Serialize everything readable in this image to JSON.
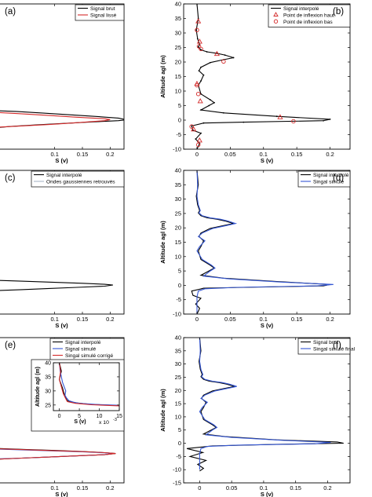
{
  "figure": {
    "background": "#ffffff"
  },
  "chart_data": [
    {
      "panel": "a",
      "panel_label": "(a)",
      "type": "line",
      "xlabel": "S (v)",
      "ylabel": "",
      "xlim": [
        0.0,
        0.225
      ],
      "ylim": [
        -10,
        40
      ],
      "xticks": [
        "0.1",
        "0.15",
        "0.2"
      ],
      "yticks": [],
      "legend": "top-right",
      "series": [
        {
          "name": "Signal brut",
          "color": "#000000",
          "x": [
            0.0,
            0.03,
            0.08,
            0.13,
            0.18,
            0.215,
            0.225,
            0.225,
            0.215,
            0.17,
            0.12,
            0.07,
            0.02,
            0.0
          ],
          "y": [
            3.2,
            3.0,
            2.4,
            1.8,
            1.2,
            0.7,
            0.3,
            0.0,
            -0.2,
            -0.6,
            -1.1,
            -1.6,
            -2.2,
            -2.5
          ]
        },
        {
          "name": "Signal lissé",
          "color": "#d42a2a",
          "x": [
            0.0,
            0.04,
            0.09,
            0.14,
            0.19,
            0.2,
            0.19,
            0.14,
            0.09,
            0.04,
            0.0
          ],
          "y": [
            2.6,
            2.2,
            1.6,
            1.0,
            0.5,
            0.2,
            -0.2,
            -0.9,
            -1.5,
            -2.0,
            -2.4
          ]
        }
      ]
    },
    {
      "panel": "b",
      "panel_label": "(b)",
      "type": "line",
      "xlabel": "S (v)",
      "ylabel": "Altitude agl (m)",
      "xlim": [
        -0.02,
        0.23
      ],
      "ylim": [
        -10,
        40
      ],
      "xticks": [
        "0",
        "0.05",
        "0.1",
        "0.15",
        "0.2"
      ],
      "yticks": [
        "-10",
        "-5",
        "0",
        "5",
        "10",
        "15",
        "20",
        "25",
        "30",
        "35",
        "40"
      ],
      "legend": "top-right",
      "series": [
        {
          "name": "Signal interpolé",
          "color": "#000000",
          "x": [
            0.0,
            0.002,
            -0.001,
            0.001,
            0.004,
            0.002,
            0.006,
            0.015,
            0.03,
            0.042,
            0.055,
            0.04,
            0.02,
            0.006,
            0.003,
            0.01,
            0.006,
            0.002,
            0.006,
            0.02,
            0.026,
            0.018,
            0.006,
            0.04,
            0.12,
            0.2,
            0.19,
            0.07,
            0.01,
            -0.008,
            -0.006,
            0.006,
            -0.002,
            0.004,
            0.0
          ],
          "y": [
            40,
            35,
            31,
            28,
            26,
            25.2,
            24.2,
            23.5,
            23,
            22.4,
            21.5,
            20.8,
            19.8,
            18.2,
            17,
            15.5,
            13.5,
            12,
            9,
            7,
            6,
            5,
            3.5,
            2.5,
            1.3,
            0.3,
            -0.2,
            -0.7,
            -1,
            -2,
            -3.5,
            -4.5,
            -6.5,
            -8,
            -10
          ]
        }
      ],
      "markers": [
        {
          "name": "Point de inflexion haut",
          "color": "#d42a2a",
          "shape": "triangle",
          "x": [
            0.002,
            0.004,
            0.03,
            0.0,
            0.005,
            0.125,
            -0.005,
            0.004
          ],
          "y": [
            34,
            27,
            22.8,
            12.5,
            6.5,
            1.0,
            -3.2,
            -7
          ]
        },
        {
          "name": "Point de inflexion bas",
          "color": "#d42a2a",
          "shape": "circle",
          "x": [
            0.0,
            0.003,
            0.006,
            0.04,
            0.0,
            0.002,
            0.145,
            -0.008,
            0.002
          ],
          "y": [
            31,
            25.4,
            24.5,
            20.2,
            12,
            9,
            -0.4,
            -2.2,
            -8.5
          ]
        }
      ]
    },
    {
      "panel": "c",
      "panel_label": "(c)",
      "type": "line",
      "xlabel": "S (v)",
      "ylabel": "",
      "xlim": [
        0.0,
        0.225
      ],
      "ylim": [
        -10,
        40
      ],
      "xticks": [
        "0.1",
        "0.15",
        "0.2"
      ],
      "yticks": [],
      "legend": "top-left",
      "series": [
        {
          "name": "Signal interpolé",
          "color": "#000000",
          "x": [
            0.0,
            0.05,
            0.1,
            0.15,
            0.19,
            0.205,
            0.19,
            0.14,
            0.09,
            0.04,
            0.0
          ],
          "y": [
            1.7,
            1.4,
            1.05,
            0.7,
            0.35,
            0.1,
            -0.3,
            -0.7,
            -1.1,
            -1.5,
            -1.8
          ]
        },
        {
          "name": "Ondes gaussiennes retrouvés",
          "color": "#a9b6c8",
          "x": [],
          "y": []
        }
      ]
    },
    {
      "panel": "d",
      "panel_label": "(d)",
      "type": "line",
      "xlabel": "S (v)",
      "ylabel": "Altitude agl (m)",
      "xlim": [
        -0.02,
        0.23
      ],
      "ylim": [
        -10,
        40
      ],
      "xticks": [
        "0",
        "0.05",
        "0.1",
        "0.15",
        "0.2"
      ],
      "yticks": [
        "-10",
        "-5",
        "0",
        "5",
        "10",
        "15",
        "20",
        "25",
        "30",
        "35",
        "40"
      ],
      "legend": "top-right",
      "series": [
        {
          "name": "Signal interpolé",
          "color": "#000000",
          "x": [
            0.0,
            0.002,
            -0.001,
            0.001,
            0.004,
            0.002,
            0.006,
            0.015,
            0.03,
            0.042,
            0.055,
            0.04,
            0.02,
            0.006,
            0.003,
            0.01,
            0.006,
            0.002,
            0.006,
            0.02,
            0.026,
            0.018,
            0.006,
            0.04,
            0.12,
            0.2,
            0.19,
            0.07,
            0.01,
            -0.008,
            -0.006,
            0.006,
            -0.002,
            0.004,
            0.0
          ],
          "y": [
            40,
            35,
            31,
            28,
            26,
            25.2,
            24.2,
            23.5,
            23,
            22.4,
            21.5,
            20.8,
            19.8,
            18.2,
            17,
            15.5,
            13.5,
            12,
            9,
            7,
            6,
            5,
            3.5,
            2.5,
            1.3,
            0.3,
            -0.2,
            -0.7,
            -1,
            -2,
            -3.5,
            -4.5,
            -6.5,
            -8,
            -10
          ]
        },
        {
          "name": "Singal simulé",
          "color": "#3557d4",
          "x": [
            0.0,
            0.001,
            0.0,
            0.002,
            0.005,
            0.003,
            0.008,
            0.02,
            0.035,
            0.046,
            0.058,
            0.044,
            0.024,
            0.008,
            0.002,
            0.012,
            0.004,
            0.0,
            0.008,
            0.022,
            0.027,
            0.02,
            0.01,
            0.05,
            0.13,
            0.205,
            0.18,
            0.06,
            0.012,
            0.002,
            0.0,
            0.0,
            0.0
          ],
          "y": [
            40,
            35,
            31,
            28,
            26,
            25.2,
            24.2,
            23.5,
            23,
            22.4,
            21.5,
            20.8,
            19.8,
            18.2,
            17,
            15.5,
            13.5,
            12,
            9,
            7,
            6,
            5,
            3.2,
            2.2,
            1.1,
            0.3,
            -0.2,
            -0.7,
            -1.2,
            -2,
            -4,
            -7,
            -10
          ]
        }
      ]
    },
    {
      "panel": "e",
      "panel_label": "(e)",
      "type": "line",
      "xlabel": "S (v)",
      "ylabel": "",
      "xlim": [
        0.0,
        0.225
      ],
      "ylim": [
        -10,
        40
      ],
      "xticks": [
        "0.1",
        "0.15",
        "0.2"
      ],
      "yticks": [],
      "legend": "top-right",
      "series": [
        {
          "name": "Signal interpolé",
          "color": "#000000",
          "x": [
            0.0,
            0.05,
            0.1,
            0.15,
            0.19,
            0.21,
            0.19,
            0.14,
            0.09,
            0.04,
            0.0
          ],
          "y": [
            1.8,
            1.5,
            1.15,
            0.8,
            0.4,
            0.1,
            -0.3,
            -0.7,
            -1.1,
            -1.5,
            -1.8
          ]
        },
        {
          "name": "Signal simulé",
          "color": "#3557d4",
          "x": [
            0.0,
            0.05,
            0.1,
            0.15,
            0.19,
            0.205,
            0.19,
            0.14,
            0.09,
            0.04,
            0.0
          ],
          "y": [
            1.6,
            1.3,
            1.0,
            0.7,
            0.35,
            0.1,
            -0.3,
            -0.7,
            -1.1,
            -1.5,
            -1.7
          ]
        },
        {
          "name": "Singal simulé corrigé",
          "color": "#d42a2a",
          "x": [
            0.0,
            0.05,
            0.1,
            0.15,
            0.19,
            0.21,
            0.19,
            0.14,
            0.09,
            0.04,
            0.0
          ],
          "y": [
            1.7,
            1.4,
            1.05,
            0.75,
            0.4,
            0.1,
            -0.3,
            -0.7,
            -1.1,
            -1.5,
            -1.8
          ]
        }
      ]
    },
    {
      "panel": "e-inset",
      "panel_label": "",
      "type": "line",
      "xlabel": "S (v)",
      "ylabel": "Altitude agl (m)",
      "xlim": [
        -0.0015,
        0.015
      ],
      "ylim": [
        23,
        40
      ],
      "xticks": [
        "0",
        "5",
        "10",
        "15"
      ],
      "yticks": [
        "25",
        "30",
        "35",
        "40"
      ],
      "x_multiplier": "x 10",
      "x_multiplier_exp": "-3",
      "series": [
        {
          "name": "Signal interpolé",
          "color": "#000000",
          "x": [
            0.0,
            0.0005,
            0.0,
            0.0008,
            0.0012,
            0.0016,
            0.002,
            0.004,
            0.008,
            0.015
          ],
          "y": [
            40,
            37,
            34,
            31,
            29,
            27.5,
            26.5,
            25.8,
            25.2,
            24.8
          ]
        },
        {
          "name": "Signal simulé",
          "color": "#3557d4",
          "x": [
            0.0,
            0.0002,
            0.0008,
            0.0016,
            0.0014,
            0.0018,
            0.0024,
            0.0035,
            0.005,
            0.009,
            0.015
          ],
          "y": [
            40,
            37,
            33,
            30,
            28.5,
            27.5,
            26.5,
            26,
            25.6,
            25.2,
            24.9
          ]
        },
        {
          "name": "Singal simulé corrigé",
          "color": "#d42a2a",
          "x": [
            0.0,
            0.0003,
            0.0,
            0.0006,
            0.001,
            0.0015,
            0.002,
            0.004,
            0.008,
            0.015
          ],
          "y": [
            40,
            37,
            34,
            31,
            29,
            27.5,
            26.2,
            25.6,
            25.1,
            24.7
          ]
        }
      ]
    },
    {
      "panel": "f",
      "panel_label": "(f)",
      "type": "line",
      "xlabel": "S (v)",
      "ylabel": "Altitude agl (m)",
      "xlim": [
        -0.025,
        0.235
      ],
      "ylim": [
        -15,
        40
      ],
      "xticks": [
        "0",
        "0.05",
        "0.1",
        "0.15",
        "0.2"
      ],
      "yticks": [
        "-15",
        "-10",
        "-5",
        "0",
        "5",
        "10",
        "15",
        "20",
        "25",
        "30",
        "35",
        "40"
      ],
      "legend": "top-right",
      "series": [
        {
          "name": "Signal brut",
          "color": "#000000",
          "x": [
            0.0,
            0.002,
            -0.001,
            0.001,
            0.004,
            0.002,
            0.006,
            0.015,
            0.03,
            0.042,
            0.055,
            0.04,
            0.02,
            0.006,
            0.003,
            0.01,
            0.006,
            0.002,
            0.006,
            0.02,
            0.026,
            0.018,
            0.006,
            0.04,
            0.12,
            0.215,
            0.225,
            0.12,
            0.02,
            -0.02,
            0.005,
            -0.015,
            0.01,
            -0.003,
            0.006,
            0.0
          ],
          "y": [
            40,
            35,
            31,
            28,
            26,
            25.2,
            24.2,
            23.5,
            23,
            22.4,
            21.5,
            20.8,
            19.8,
            18.2,
            17,
            15.5,
            13.5,
            12,
            9,
            7,
            6,
            5,
            3.5,
            2.5,
            1.3,
            0.5,
            0.0,
            -0.4,
            -1.0,
            -2.0,
            -3.5,
            -5.0,
            -6.5,
            -8.0,
            -9.5,
            -10.5
          ]
        },
        {
          "name": "Singal simulé final",
          "color": "#3557d4",
          "x": [
            0.0,
            0.001,
            0.0,
            0.002,
            0.005,
            0.003,
            0.008,
            0.02,
            0.035,
            0.046,
            0.058,
            0.044,
            0.024,
            0.008,
            0.002,
            0.012,
            0.004,
            0.0,
            0.008,
            0.022,
            0.027,
            0.02,
            0.01,
            0.05,
            0.13,
            0.205,
            0.18,
            0.06,
            0.012,
            0.002,
            0.0,
            0.0,
            0.0
          ],
          "y": [
            40,
            35,
            31,
            28,
            26,
            25.2,
            24.2,
            23.5,
            23,
            22.4,
            21.5,
            20.8,
            19.8,
            18.2,
            17,
            15.5,
            13.5,
            12,
            9,
            7,
            6,
            5,
            3.2,
            2.2,
            1.1,
            0.3,
            -0.2,
            -0.7,
            -1.2,
            -2,
            -4,
            -7,
            -10
          ]
        }
      ]
    }
  ]
}
